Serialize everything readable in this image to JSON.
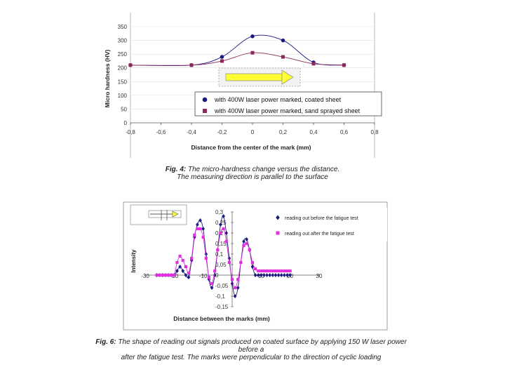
{
  "chart_data": [
    {
      "type": "line",
      "xlabel": "Distance from the center of the mark (mm)",
      "ylabel": "Micro hardness (HV)",
      "xlim": [
        -0.8,
        0.8
      ],
      "ylim": [
        0,
        350
      ],
      "xticks": [
        "-0,8",
        "-0,6",
        "-0,4",
        "-0,2",
        "0",
        "0,2",
        "0,4",
        "0,6",
        "0,8"
      ],
      "yticks": [
        "0",
        "50",
        "100",
        "150",
        "200",
        "250",
        "300",
        "350"
      ],
      "legend_position": "bottom-right",
      "colors": {
        "coated": "#1a1a80",
        "sand": "#8b2a5a"
      },
      "series": [
        {
          "name": "with 400W laser power marked, coated sheet",
          "marker": "circle",
          "x": [
            -0.8,
            -0.4,
            -0.2,
            0,
            0.2,
            0.4,
            0.6
          ],
          "y": [
            210,
            210,
            240,
            315,
            300,
            220,
            210
          ]
        },
        {
          "name": "with 400W laser power marked, sand sprayed sheet",
          "marker": "square",
          "x": [
            -0.8,
            -0.4,
            -0.2,
            0,
            0.2,
            0.4,
            0.6
          ],
          "y": [
            210,
            210,
            225,
            255,
            240,
            215,
            210
          ]
        }
      ]
    },
    {
      "type": "line",
      "xlabel": "Distance between the marks (mm)",
      "ylabel": "Intensity",
      "xlim": [
        -30,
        30
      ],
      "ylim": [
        -0.15,
        0.3
      ],
      "xticks": [
        "-30",
        "-20",
        "-10",
        "0",
        "10",
        "20",
        "30"
      ],
      "yticks": [
        "0,3",
        "0,25",
        "0,2",
        "0,15",
        "0,1",
        "0,05",
        "0",
        "-0,05",
        "-0,1",
        "-0,15"
      ],
      "legend_position": "top-right",
      "colors": {
        "before": "#1a1a80",
        "after": "#e030e0"
      },
      "series": [
        {
          "name": "reading out before the fatigue test",
          "marker": "diamond",
          "x": [
            -26,
            -25,
            -24,
            -23,
            -22,
            -21,
            -20,
            -19,
            -18,
            -17,
            -16,
            -15,
            -14,
            -13,
            -12,
            -11,
            -10,
            -9,
            -8,
            -7,
            -6,
            -5,
            -4,
            -3,
            -2,
            -1,
            0,
            1,
            2,
            3,
            4,
            5,
            6,
            7,
            8,
            9,
            10,
            11,
            12,
            13,
            14,
            15,
            16,
            17,
            18,
            19,
            20
          ],
          "y": [
            0.0,
            0.0,
            0.0,
            0.0,
            0.0,
            0.0,
            0.0,
            0.02,
            0.04,
            0.02,
            0.0,
            -0.01,
            0.07,
            0.18,
            0.24,
            0.26,
            0.22,
            0.1,
            -0.02,
            -0.06,
            0.0,
            0.12,
            0.24,
            0.28,
            0.2,
            0.08,
            -0.04,
            -0.1,
            -0.06,
            0.06,
            0.16,
            0.17,
            0.12,
            0.04,
            0.0,
            0.0,
            0.0,
            0.0,
            0.0,
            0.0,
            0.0,
            0.0,
            0.0,
            0.0,
            0.0,
            0.0,
            0.0
          ]
        },
        {
          "name": "reading out after the fatigue test",
          "marker": "square",
          "x": [
            -26,
            -25,
            -24,
            -23,
            -22,
            -21,
            -20,
            -19,
            -18,
            -17,
            -16,
            -15,
            -14,
            -13,
            -12,
            -11,
            -10,
            -9,
            -8,
            -7,
            -6,
            -5,
            -4,
            -3,
            -2,
            -1,
            0,
            1,
            2,
            3,
            4,
            5,
            6,
            7,
            8,
            9,
            10,
            11,
            12,
            13,
            14,
            15,
            16,
            17,
            18,
            19,
            20
          ],
          "y": [
            0.0,
            0.0,
            0.0,
            0.0,
            0.0,
            0.0,
            0.0,
            0.06,
            0.09,
            0.07,
            0.04,
            0.01,
            0.08,
            0.19,
            0.22,
            0.22,
            0.18,
            0.08,
            -0.01,
            -0.04,
            0.02,
            0.12,
            0.2,
            0.22,
            0.16,
            0.06,
            -0.02,
            -0.06,
            -0.02,
            0.06,
            0.14,
            0.15,
            0.12,
            0.06,
            0.03,
            0.02,
            0.02,
            0.02,
            0.02,
            0.02,
            0.02,
            0.02,
            0.02,
            0.02,
            0.02,
            0.02,
            0.02
          ]
        }
      ]
    }
  ],
  "captions": {
    "fig4_num": "Fig. 4:",
    "fig4_line1": " The micro-hardness change versus the distance.",
    "fig4_line2": "The measuring direction is parallel to the surface",
    "fig6_num": "Fig. 6:",
    "fig6_line1": " The shape of reading out signals produced on coated surface by applying 150 W laser power before a",
    "fig6_line2": "after the fatigue test. The marks were perpendicular to the direction of cyclic loading"
  }
}
